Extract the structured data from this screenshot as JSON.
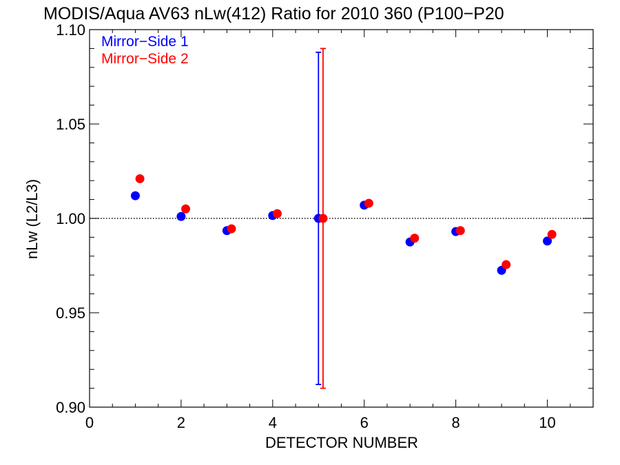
{
  "chart_data": {
    "type": "scatter",
    "title": "MODIS/Aqua AV63 nLw(412) Ratio for 2010 360 (P100−P20",
    "xlabel": "DETECTOR NUMBER",
    "ylabel": "nLw (L2/L3)",
    "xlim": [
      0,
      11
    ],
    "ylim": [
      0.9,
      1.1
    ],
    "x_ticks": [
      "0",
      "2",
      "4",
      "6",
      "8",
      "10"
    ],
    "y_ticks": [
      "0.90",
      "0.95",
      "1.00",
      "1.05",
      "1.10"
    ],
    "reference_line": 1.0,
    "legend_position": "top-left",
    "series": [
      {
        "name": "Mirror−Side 1",
        "color": "#0000ff",
        "x": [
          1,
          2,
          3,
          4,
          5,
          6,
          7,
          8,
          9,
          10
        ],
        "y": [
          1.012,
          1.001,
          0.9935,
          1.0015,
          1.0,
          1.007,
          0.9875,
          0.993,
          0.9725,
          0.988
        ],
        "error_bar": {
          "x": 5,
          "low": 0.912,
          "high": 1.088
        }
      },
      {
        "name": "Mirror−Side 2",
        "color": "#ff0000",
        "x": [
          1.1,
          2.1,
          3.1,
          4.1,
          5.1,
          6.1,
          7.1,
          8.1,
          9.1,
          10.1
        ],
        "y": [
          1.021,
          1.005,
          0.9945,
          1.0025,
          1.0,
          1.008,
          0.9895,
          0.9935,
          0.9755,
          0.9915
        ],
        "error_bar": {
          "x": 5.1,
          "low": 0.91,
          "high": 1.09
        }
      }
    ]
  }
}
